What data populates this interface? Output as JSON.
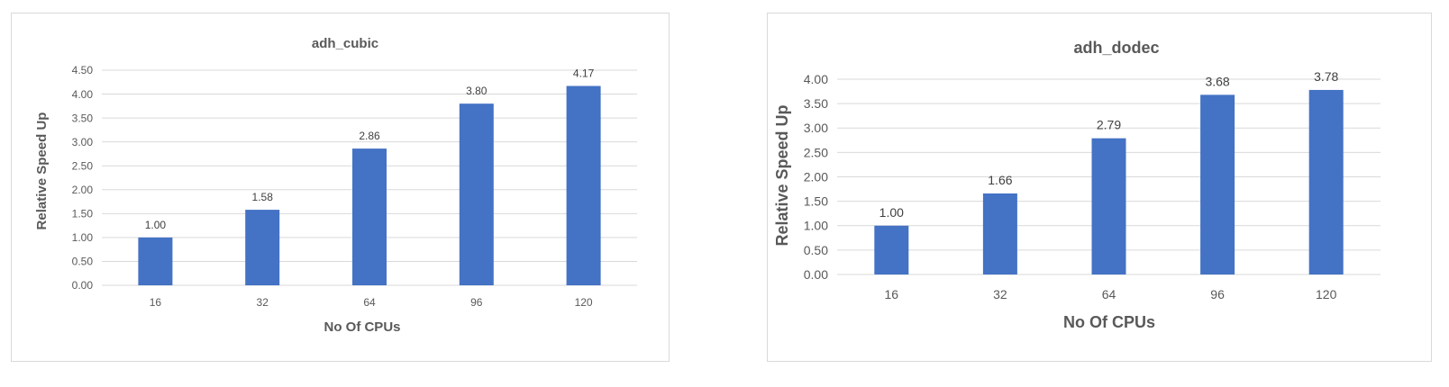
{
  "colors": {
    "bar": "#4472c4",
    "grid": "#d9d9d9",
    "text": "#595959"
  },
  "chart_data": [
    {
      "type": "bar",
      "title": "adh_cubic",
      "xlabel": "No Of CPUs",
      "ylabel": "Relative Speed Up",
      "categories": [
        "16",
        "32",
        "64",
        "96",
        "120"
      ],
      "values": [
        1.0,
        1.58,
        2.86,
        3.8,
        4.17
      ],
      "value_labels": [
        "1.00",
        "1.58",
        "2.86",
        "3.80",
        "4.17"
      ],
      "ylim": [
        0,
        4.5
      ],
      "yticks": [
        "0.00",
        "0.50",
        "1.00",
        "1.50",
        "2.00",
        "2.50",
        "3.00",
        "3.50",
        "4.00",
        "4.50"
      ],
      "grid": true,
      "legend": "none"
    },
    {
      "type": "bar",
      "title": "adh_dodec",
      "xlabel": "No Of CPUs",
      "ylabel": "Relative Speed Up",
      "categories": [
        "16",
        "32",
        "64",
        "96",
        "120"
      ],
      "values": [
        1.0,
        1.66,
        2.79,
        3.68,
        3.78
      ],
      "value_labels": [
        "1.00",
        "1.66",
        "2.79",
        "3.68",
        "3.78"
      ],
      "ylim": [
        0,
        4.0
      ],
      "yticks": [
        "0.00",
        "0.50",
        "1.00",
        "1.50",
        "2.00",
        "2.50",
        "3.00",
        "3.50",
        "4.00"
      ],
      "grid": true,
      "legend": "none"
    }
  ]
}
